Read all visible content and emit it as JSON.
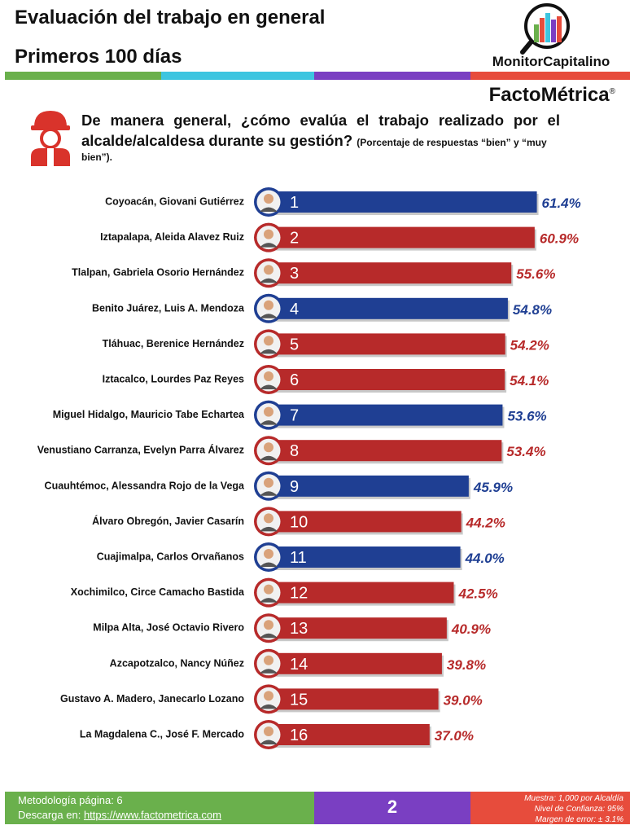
{
  "header": {
    "title": "Evaluación del trabajo en general",
    "subtitle": "Primeros 100 días",
    "brand": "MonitorCapitalino",
    "brand2": "FactoMétrica",
    "brand2_mark": "®",
    "stripe_colors": [
      "#6ab04c",
      "#3dc5e0",
      "#7a3fc2",
      "#e74c3c"
    ]
  },
  "question": {
    "text": "De manera general, ¿cómo evalúa el trabajo realizado por el alcalde/alcaldesa durante su gestión?",
    "note_a": "(Porcentaje de respuestas “bien” y “muy",
    "note_b": "bien”).",
    "icon": "worker-helmet-icon"
  },
  "chart_data": {
    "type": "bar",
    "orientation": "horizontal",
    "value_unit": "%",
    "colors": {
      "blue": "#1f3f93",
      "red": "#b72a2a"
    },
    "categories": [
      "Coyoacán, Giovani Gutiérrez",
      "Iztapalapa, Aleida Alavez Ruiz",
      "Tlalpan, Gabriela Osorio Hernández",
      "Benito Juárez, Luis A. Mendoza",
      "Tláhuac, Berenice Hernández",
      "Iztacalco, Lourdes Paz Reyes",
      "Miguel Hidalgo, Mauricio Tabe Echartea",
      "Venustiano Carranza, Evelyn Parra Álvarez",
      "Cuauhtémoc, Alessandra Rojo de la Vega",
      "Álvaro Obregón, Javier Casarín",
      "Cuajimalpa, Carlos Orvañanos",
      "Xochimilco, Circe Camacho Bastida",
      "Milpa Alta, José Octavio Rivero",
      "Azcapotzalco, Nancy Núñez",
      "Gustavo A. Madero, Janecarlo Lozano",
      "La Magdalena C., José F. Mercado"
    ],
    "ranks": [
      "1",
      "2",
      "3",
      "4",
      "5",
      "6",
      "7",
      "8",
      "9",
      "10",
      "11",
      "12",
      "13",
      "14",
      "15",
      "16"
    ],
    "values": [
      61.4,
      60.9,
      55.6,
      54.8,
      54.2,
      54.1,
      53.6,
      53.4,
      45.9,
      44.2,
      44.0,
      42.5,
      40.9,
      39.8,
      39.0,
      37.0
    ],
    "value_labels": [
      "61.4%",
      "60.9%",
      "55.6%",
      "54.8%",
      "54.2%",
      "54.1%",
      "53.6%",
      "53.4%",
      "45.9%",
      "44.2%",
      "44.0%",
      "42.5%",
      "40.9%",
      "39.8%",
      "39.0%",
      "37.0%"
    ],
    "bar_colors": [
      "blue",
      "red",
      "red",
      "blue",
      "red",
      "red",
      "blue",
      "red",
      "blue",
      "red",
      "blue",
      "red",
      "red",
      "red",
      "red",
      "red"
    ]
  },
  "footer": {
    "methodology": "Metodología página: 6",
    "download_label": "Descarga en: ",
    "download_url": "https://www.factometrica.com",
    "page": "2",
    "sample": "Muestra:  1,000 por Alcaldía",
    "confidence": "Nivel de Confianza: 95%",
    "margin": "Margen de error: ± 3.1%"
  }
}
